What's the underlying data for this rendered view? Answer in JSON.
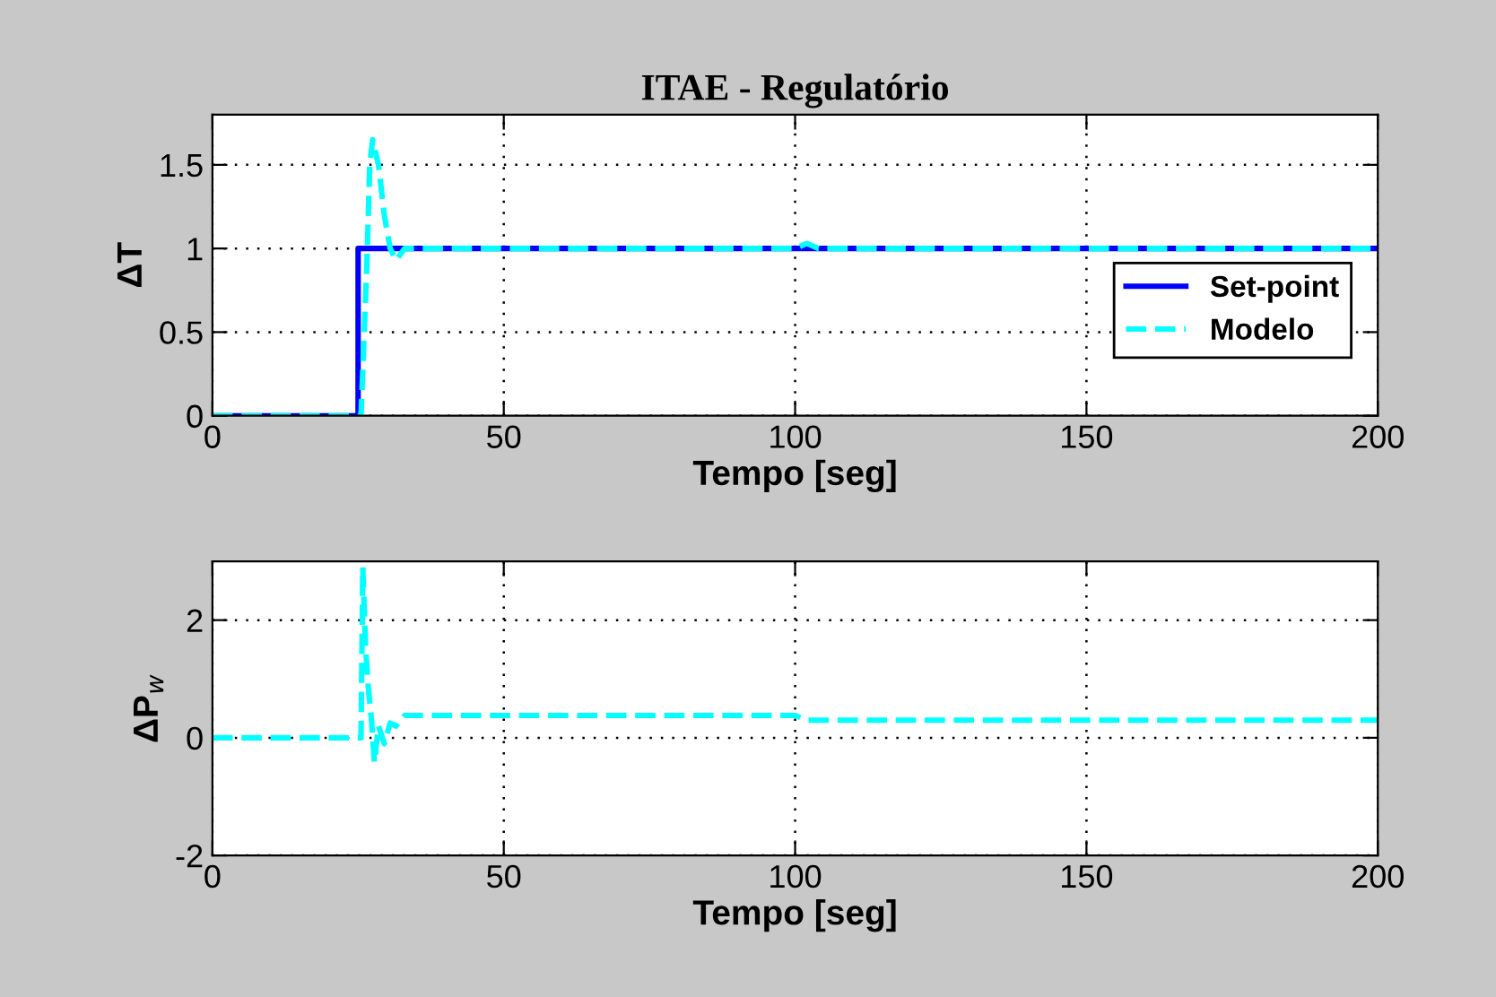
{
  "chart_data": [
    {
      "type": "line",
      "title": "ITAE - Regulatório",
      "xlabel": "Tempo [seg]",
      "ylabel": "ΔT",
      "xlim": [
        0,
        200
      ],
      "xticks": [
        0,
        50,
        100,
        150,
        200
      ],
      "ylim": [
        0,
        1.8
      ],
      "yticks": [
        0,
        0.5,
        1,
        1.5
      ],
      "grid": true,
      "legend": "right",
      "series": [
        {
          "name": "Set-point",
          "color": "#0000ff",
          "line_style": "solid",
          "x": [
            0,
            25,
            25,
            200
          ],
          "values": [
            0,
            0,
            1,
            1
          ]
        },
        {
          "name": "Modelo",
          "color": "#00ffff",
          "line_style": "dashed",
          "x": [
            0,
            25.5,
            26.5,
            27,
            27.5,
            28.5,
            29.5,
            30.5,
            31.5,
            33,
            100,
            102,
            104,
            200
          ],
          "values": [
            0,
            0,
            0.9,
            1.5,
            1.65,
            1.5,
            1.2,
            1.0,
            0.93,
            1.0,
            1.0,
            1.03,
            1.0,
            1.0
          ]
        }
      ]
    },
    {
      "type": "line",
      "xlabel": "Tempo [seg]",
      "ylabel": "ΔP$_{w}$",
      "xlim": [
        0,
        200
      ],
      "xticks": [
        0,
        50,
        100,
        150,
        200
      ],
      "ylim": [
        -2,
        3
      ],
      "yticks": [
        -2,
        0,
        2
      ],
      "grid": true,
      "series": [
        {
          "color": "#00ffff",
          "line_style": "dashed",
          "x": [
            0,
            25.5,
            25.8,
            26.3,
            26.8,
            27.3,
            27.8,
            28.5,
            29.5,
            30.5,
            31.5,
            33,
            100,
            102,
            200
          ],
          "values": [
            0,
            0,
            2.9,
            1.5,
            0.8,
            0.3,
            -0.42,
            0.2,
            -0.1,
            0.25,
            0.2,
            0.38,
            0.38,
            0.3,
            0.3
          ]
        }
      ]
    }
  ]
}
